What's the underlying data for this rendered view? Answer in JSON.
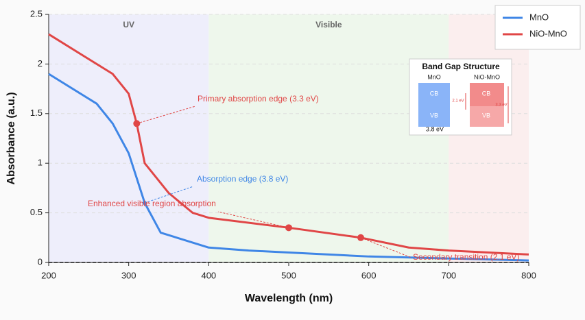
{
  "chart_data": {
    "type": "line",
    "xlabel": "Wavelength (nm)",
    "ylabel": "Absorbance (a.u.)",
    "xlim": [
      200,
      800
    ],
    "ylim": [
      0,
      2.5
    ],
    "xticks": [
      200,
      300,
      400,
      500,
      600,
      700,
      800
    ],
    "yticks": [
      0,
      0.5,
      1,
      1.5,
      2,
      2.5
    ],
    "grid": true,
    "legend": "upper right",
    "regions": [
      {
        "label": "UV",
        "range": [
          200,
          400
        ],
        "color": "#eeeefb"
      },
      {
        "label": "Visible",
        "range": [
          400,
          700
        ],
        "color": "#eef7ec"
      },
      {
        "range": [
          700,
          800
        ],
        "color": "#fbeeee"
      }
    ],
    "series": [
      {
        "name": "MnO",
        "color": "#3f86e6",
        "x": [
          200,
          260,
          280,
          300,
          320,
          340,
          400,
          450,
          500,
          600,
          700,
          800
        ],
        "values": [
          1.9,
          1.6,
          1.4,
          1.1,
          0.6,
          0.3,
          0.15,
          0.12,
          0.1,
          0.06,
          0.04,
          0.02
        ]
      },
      {
        "name": "NiO-MnO",
        "color": "#e04646",
        "x": [
          200,
          280,
          300,
          310,
          320,
          350,
          380,
          400,
          500,
          590,
          650,
          700,
          800
        ],
        "values": [
          2.3,
          1.9,
          1.7,
          1.4,
          1.0,
          0.7,
          0.5,
          0.45,
          0.35,
          0.25,
          0.15,
          0.12,
          0.08
        ]
      }
    ],
    "annotations": [
      {
        "text": "Primary absorption edge (3.3 eV)",
        "x": 310,
        "y": 1.4,
        "color": "#e04646"
      },
      {
        "text": "Absorption edge (3.8 eV)",
        "x": 320,
        "y": 0.6,
        "color": "#3f86e6"
      },
      {
        "text": "Enhanced visible region absorption",
        "x": 500,
        "y": 0.35,
        "color": "#e04646"
      },
      {
        "text": "Secondary transition (2.1 eV)",
        "x": 590,
        "y": 0.25,
        "color": "#e04646"
      }
    ],
    "inset": {
      "title": "Band Gap Structure",
      "left_label": "MnO",
      "right_label": "NiO-MnO",
      "left_cb": "CB",
      "left_vb": "VB",
      "right_cb": "CB",
      "right_vb": "VB",
      "left_gap": "3.8 eV",
      "defect_gap": "2.1 eV",
      "right_gap": "3.3 eV"
    }
  }
}
